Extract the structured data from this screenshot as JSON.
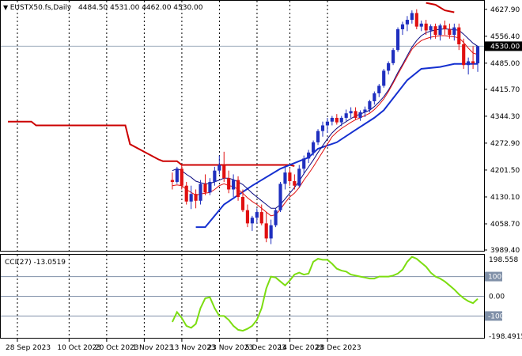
{
  "header": {
    "symbol": "EUSTX50.fs,Daily",
    "ohlc": "4484.50 4531.00 4462.00 4530.00"
  },
  "indicator": {
    "label": "CCI(27) -13.0519"
  },
  "price_axis": {
    "ticks": [
      "4627.90",
      "4556.40",
      "4485.00",
      "4415.70",
      "4344.30",
      "4272.90",
      "4201.50",
      "4130.10",
      "4058.70",
      "3989.40"
    ],
    "current_price_label": "4530.00"
  },
  "cci_axis": {
    "ticks": [
      "198.558",
      "100",
      "0.00",
      "-100",
      "-198.4915"
    ]
  },
  "time_axis": {
    "labels": [
      "28 Sep 2023",
      "10 Oct 2023",
      "20 Oct 2023",
      "1 Nov 2023",
      "13 Nov 2023",
      "23 Nov 2023",
      "5 Dec 2023",
      "14 Dec 2023",
      "28 Dec 2023"
    ]
  },
  "colors": {
    "background": "#ffffff",
    "bull": "#1f2fbf",
    "bear": "#e01010",
    "ma_fast": "#e01010",
    "ma_slow": "#0a0a80",
    "stop_high": "#cc0000",
    "stop_low": "#1530d0",
    "cci_line": "#7cdd10",
    "current_price_bg": "#000000"
  },
  "chart_data": [
    {
      "type": "candlestick",
      "timeframe": "Daily",
      "ylim": [
        3989.4,
        4640
      ],
      "x_labels": [
        "28 Sep 2023",
        "10 Oct 2023",
        "20 Oct 2023",
        "1 Nov 2023",
        "13 Nov 2023",
        "23 Nov 2023",
        "5 Dec 2023",
        "14 Dec 2023",
        "28 Dec 2023"
      ],
      "candles": [
        [
          4175,
          4195,
          4150,
          4170
        ],
        [
          4170,
          4210,
          4165,
          4205
        ],
        [
          4205,
          4215,
          4150,
          4160
        ],
        [
          4160,
          4170,
          4110,
          4118
        ],
        [
          4118,
          4160,
          4098,
          4138
        ],
        [
          4138,
          4150,
          4100,
          4120
        ],
        [
          4120,
          4175,
          4110,
          4165
        ],
        [
          4165,
          4190,
          4135,
          4142
        ],
        [
          4142,
          4180,
          4135,
          4170
        ],
        [
          4170,
          4210,
          4160,
          4200
        ],
        [
          4200,
          4240,
          4190,
          4215
        ],
        [
          4215,
          4250,
          4170,
          4180
        ],
        [
          4180,
          4200,
          4140,
          4150
        ],
        [
          4150,
          4190,
          4130,
          4175
        ],
        [
          4175,
          4185,
          4120,
          4130
        ],
        [
          4130,
          4150,
          4090,
          4095
        ],
        [
          4095,
          4110,
          4050,
          4060
        ],
        [
          4060,
          4080,
          4040,
          4075
        ],
        [
          4075,
          4100,
          4060,
          4090
        ],
        [
          4090,
          4110,
          4055,
          4060
        ],
        [
          4060,
          4090,
          4010,
          4020
        ],
        [
          4020,
          4070,
          4005,
          4055
        ],
        [
          4055,
          4100,
          4050,
          4095
        ],
        [
          4095,
          4170,
          4090,
          4165
        ],
        [
          4165,
          4210,
          4150,
          4195
        ],
        [
          4195,
          4205,
          4160,
          4172
        ],
        [
          4172,
          4190,
          4150,
          4160
        ],
        [
          4160,
          4215,
          4155,
          4205
        ],
        [
          4205,
          4240,
          4190,
          4232
        ],
        [
          4232,
          4255,
          4220,
          4248
        ],
        [
          4248,
          4280,
          4240,
          4275
        ],
        [
          4275,
          4310,
          4268,
          4305
        ],
        [
          4305,
          4330,
          4290,
          4320
        ],
        [
          4320,
          4340,
          4300,
          4330
        ],
        [
          4330,
          4345,
          4320,
          4340
        ],
        [
          4340,
          4350,
          4322,
          4328
        ],
        [
          4328,
          4345,
          4318,
          4340
        ],
        [
          4340,
          4362,
          4332,
          4352
        ],
        [
          4352,
          4368,
          4340,
          4358
        ],
        [
          4358,
          4368,
          4335,
          4340
        ],
        [
          4340,
          4360,
          4332,
          4355
        ],
        [
          4355,
          4370,
          4342,
          4362
        ],
        [
          4362,
          4388,
          4355,
          4384
        ],
        [
          4384,
          4410,
          4375,
          4405
        ],
        [
          4405,
          4430,
          4395,
          4425
        ],
        [
          4425,
          4470,
          4420,
          4465
        ],
        [
          4465,
          4490,
          4455,
          4485
        ],
        [
          4485,
          4525,
          4480,
          4520
        ],
        [
          4520,
          4580,
          4515,
          4575
        ],
        [
          4575,
          4595,
          4560,
          4588
        ],
        [
          4588,
          4610,
          4570,
          4600
        ],
        [
          4600,
          4625,
          4590,
          4618
        ],
        [
          4618,
          4628,
          4575,
          4582
        ],
        [
          4582,
          4598,
          4570,
          4590
        ],
        [
          4590,
          4600,
          4560,
          4572
        ],
        [
          4572,
          4588,
          4548,
          4583
        ],
        [
          4583,
          4590,
          4550,
          4560
        ],
        [
          4560,
          4590,
          4545,
          4585
        ],
        [
          4585,
          4598,
          4560,
          4575
        ],
        [
          4575,
          4590,
          4550,
          4560
        ],
        [
          4560,
          4590,
          4545,
          4580
        ],
        [
          4580,
          4590,
          4520,
          4535
        ],
        [
          4535,
          4550,
          4470,
          4480
        ],
        [
          4480,
          4500,
          4455,
          4490
        ],
        [
          4490,
          4530,
          4470,
          4485
        ],
        [
          4484.5,
          4531,
          4462,
          4530
        ]
      ],
      "ma_fast": [
        4160,
        4162,
        4160,
        4150,
        4142,
        4135,
        4138,
        4140,
        4142,
        4150,
        4160,
        4165,
        4160,
        4158,
        4150,
        4140,
        4128,
        4118,
        4110,
        4100,
        4090,
        4080,
        4083,
        4097,
        4115,
        4130,
        4140,
        4155,
        4175,
        4192,
        4210,
        4230,
        4250,
        4270,
        4290,
        4302,
        4312,
        4320,
        4328,
        4335,
        4340,
        4346,
        4352,
        4362,
        4375,
        4390,
        4410,
        4432,
        4455,
        4478,
        4500,
        4522,
        4535,
        4545,
        4550,
        4554,
        4556,
        4558,
        4558,
        4556,
        4555,
        4552,
        4540,
        4525,
        4512,
        4508
      ],
      "ma_slow": [
        4200,
        4205,
        4200,
        4190,
        4182,
        4172,
        4168,
        4165,
        4166,
        4170,
        4175,
        4180,
        4180,
        4176,
        4170,
        4163,
        4152,
        4140,
        4130,
        4120,
        4110,
        4100,
        4100,
        4110,
        4125,
        4140,
        4155,
        4172,
        4192,
        4210,
        4228,
        4248,
        4266,
        4284,
        4300,
        4312,
        4322,
        4330,
        4338,
        4345,
        4350,
        4355,
        4360,
        4370,
        4382,
        4396,
        4414,
        4436,
        4460,
        4482,
        4505,
        4528,
        4545,
        4558,
        4566,
        4570,
        4573,
        4575,
        4576,
        4575,
        4574,
        4572,
        4562,
        4550,
        4538,
        4530
      ],
      "stop_high": [
        [
          0,
          4330
        ],
        [
          5,
          4330
        ],
        [
          6,
          4320
        ],
        [
          25,
          4320
        ],
        [
          26,
          4270
        ],
        [
          32,
          4230
        ],
        [
          33,
          4225
        ],
        [
          36,
          4225
        ],
        [
          37,
          4215
        ],
        [
          60,
          4215
        ],
        [
          61,
          4212
        ]
      ],
      "stop_high_recent": [
        [
          89,
          4645
        ],
        [
          91,
          4640
        ],
        [
          93,
          4625
        ],
        [
          95,
          4620
        ]
      ],
      "stop_low": [
        [
          40,
          4050
        ],
        [
          42,
          4050
        ],
        [
          46,
          4110
        ],
        [
          52,
          4160
        ],
        [
          58,
          4205
        ],
        [
          62,
          4225
        ],
        [
          64,
          4235
        ],
        [
          66,
          4258
        ],
        [
          70,
          4275
        ],
        [
          74,
          4308
        ],
        [
          78,
          4340
        ],
        [
          80,
          4360
        ],
        [
          85,
          4440
        ],
        [
          88,
          4470
        ],
        [
          92,
          4475
        ],
        [
          95,
          4483
        ],
        [
          99,
          4483
        ],
        [
          100,
          4483
        ]
      ],
      "current_price": 4530.0
    },
    {
      "type": "line",
      "name": "CCI(27)",
      "ylim": [
        -198.4915,
        198.558
      ],
      "levels": [
        100,
        0,
        -100
      ],
      "values": [
        -130,
        -80,
        -110,
        -150,
        -160,
        -140,
        -60,
        -10,
        -5,
        -60,
        -100,
        -100,
        -120,
        -150,
        -170,
        -175,
        -165,
        -150,
        -120,
        -60,
        40,
        100,
        95,
        75,
        55,
        80,
        110,
        120,
        110,
        115,
        175,
        190,
        185,
        185,
        165,
        140,
        130,
        125,
        110,
        105,
        100,
        95,
        90,
        90,
        100,
        100,
        100,
        105,
        115,
        135,
        175,
        200,
        190,
        170,
        150,
        120,
        100,
        90,
        75,
        55,
        35,
        10,
        -10,
        -25,
        -35,
        -13
      ]
    }
  ]
}
